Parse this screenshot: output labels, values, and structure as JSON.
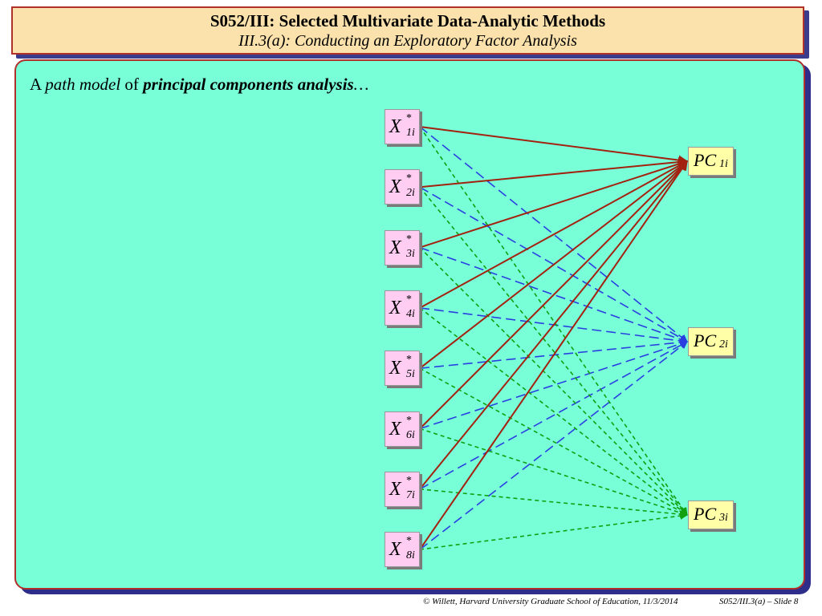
{
  "title": {
    "line1": "S052/III: Selected Multivariate Data-Analytic Methods",
    "line2": "III.3(a):  Conducting an Exploratory Factor Analysis"
  },
  "heading": {
    "part1": "A ",
    "part2": "path model",
    "part3": " of ",
    "part4": "principal components analysis",
    "part5": "…"
  },
  "diagram": {
    "inputs": [
      {
        "var": "X",
        "sup": "*",
        "sub": "1i"
      },
      {
        "var": "X",
        "sup": "*",
        "sub": "2i"
      },
      {
        "var": "X",
        "sup": "*",
        "sub": "3i"
      },
      {
        "var": "X",
        "sup": "*",
        "sub": "4i"
      },
      {
        "var": "X",
        "sup": "*",
        "sub": "5i"
      },
      {
        "var": "X",
        "sup": "*",
        "sub": "6i"
      },
      {
        "var": "X",
        "sup": "*",
        "sub": "7i"
      },
      {
        "var": "X",
        "sup": "*",
        "sub": "8i"
      }
    ],
    "outputs": [
      {
        "var": "PC",
        "sub": "1i",
        "color": "#a3210f",
        "dash": "solid"
      },
      {
        "var": "PC",
        "sub": "2i",
        "color": "#2a3fe0",
        "dash": "long-dash"
      },
      {
        "var": "PC",
        "sub": "3i",
        "color": "#10a010",
        "dash": "short-dash"
      }
    ]
  },
  "colors": {
    "panel_background": "#78ffd8",
    "panel_border": "#b0302a",
    "title_background": "#fbe2ac",
    "input_node": "#ffccf2",
    "output_node": "#ffffa8"
  },
  "footer": {
    "left": "© Willett, Harvard University Graduate School of Education, 11/3/2014",
    "right": "S052/III.3(a) – Slide 8"
  }
}
